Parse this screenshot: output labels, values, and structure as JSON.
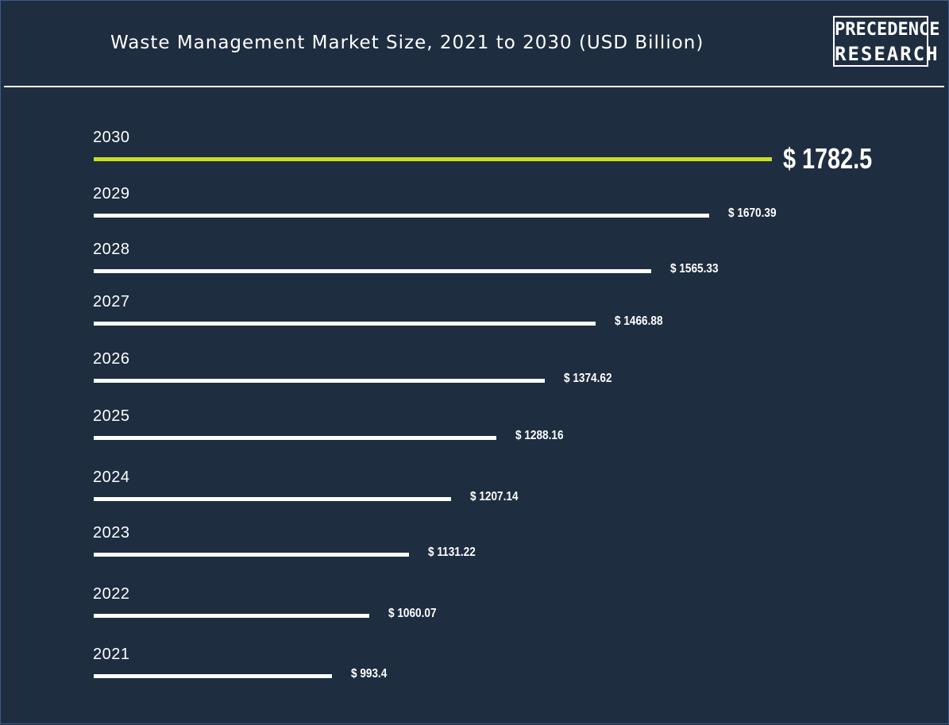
{
  "header": {
    "title": "Waste Management Market Size, 2021 to 2030 (USD Billion)",
    "logo_line1": "PRECEDENCE",
    "logo_line2": "RESEARCH"
  },
  "colors": {
    "background": "#1e2d40",
    "bar": "#ffffff",
    "highlight_bar": "#c9e021"
  },
  "chart_data": {
    "type": "bar",
    "orientation": "horizontal",
    "title": "Waste Management Market Size, 2021 to 2030 (USD Billion)",
    "categories": [
      "2030",
      "2029",
      "2028",
      "2027",
      "2026",
      "2025",
      "2024",
      "2023",
      "2022",
      "2021"
    ],
    "values": [
      1782.5,
      1670.39,
      1565.33,
      1466.88,
      1374.62,
      1288.16,
      1207.14,
      1131.22,
      1060.07,
      993.4
    ],
    "value_labels": [
      "$ 1782.5",
      "$ 1670.39",
      "$ 1565.33",
      "$ 1466.88",
      "$ 1374.62",
      "$ 1288.16",
      "$ 1207.14",
      "$ 1131.22",
      "$ 1060.07",
      "$ 993.4"
    ],
    "highlight": "2030",
    "xlabel": "",
    "ylabel": "",
    "grid": false,
    "legend": "none"
  }
}
